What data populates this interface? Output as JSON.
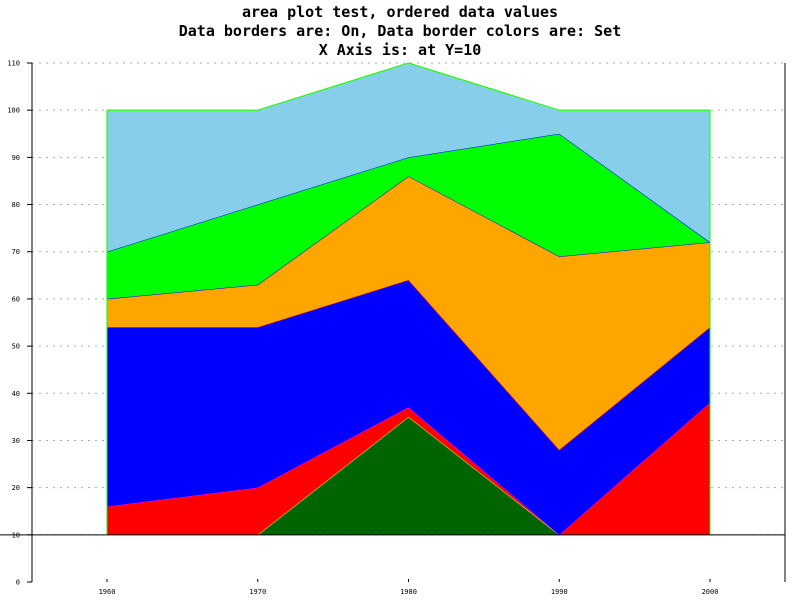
{
  "title_lines": [
    "area plot test, ordered data values",
    "Data borders are: On, Data border colors are: Set",
    "X Axis is: at Y=10"
  ],
  "chart_data": {
    "type": "area",
    "stacked": true,
    "title": "area plot test, ordered data values",
    "subtitle": [
      "Data borders are: On, Data border colors are: Set",
      "X Axis is: at Y=10"
    ],
    "xlabel": "",
    "ylabel": "",
    "categories": [
      "1960",
      "1970",
      "1980",
      "1990",
      "2000"
    ],
    "x_axis_at_y": 10,
    "ylim": [
      0,
      110
    ],
    "y_ticks": [
      0,
      10,
      20,
      30,
      40,
      50,
      60,
      70,
      80,
      90,
      100,
      110
    ],
    "grid": true,
    "legend": "none",
    "series": [
      {
        "values": [
          0,
          0,
          25,
          0,
          0
        ],
        "color": "#006400",
        "border": "#ffff00"
      },
      {
        "values": [
          6,
          10,
          2,
          0,
          28
        ],
        "color": "#ff0000",
        "border": "#ff00ff"
      },
      {
        "values": [
          38,
          34,
          27,
          18,
          16
        ],
        "color": "#0000ff",
        "border": "#ff0000"
      },
      {
        "values": [
          6,
          9,
          22,
          41,
          18
        ],
        "color": "#ffa500",
        "border": "#0000ff"
      },
      {
        "values": [
          10,
          17,
          4,
          26,
          0
        ],
        "color": "#00ff00",
        "border": "#0000ff"
      },
      {
        "values": [
          30,
          20,
          20,
          5,
          28
        ],
        "color": "#87ceeb",
        "border": "#ffff00"
      }
    ],
    "outline_color": "#00ff00"
  }
}
